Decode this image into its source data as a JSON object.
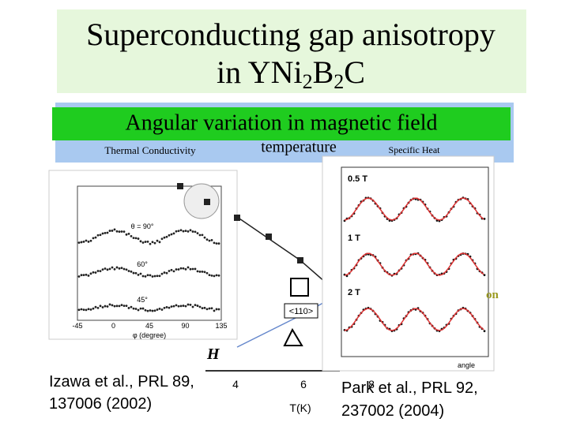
{
  "header": {
    "title_line1": "Superconducting gap anisotropy",
    "title_line2": [
      "in YNi",
      "2",
      "B",
      "2",
      "C"
    ]
  },
  "banner": "Angular variation in magnetic field",
  "labels": {
    "thermal": "Thermal Conductivity",
    "temperature": "temperature",
    "specific": "Specific Heat",
    "fragment": "on"
  },
  "left_figure": {
    "x_ticks": [
      "-45",
      "0",
      "45",
      "90",
      "135"
    ],
    "x_label": "φ (degree)",
    "curves": [
      "θ = 90°",
      "60°",
      "45°"
    ]
  },
  "middle_figure": {
    "x_ticks": [
      "4",
      "6",
      "8"
    ],
    "x_label": "T(K)",
    "inset": "<110>",
    "y_label": "H"
  },
  "right_figure": {
    "fields": [
      "0.5 T",
      "1 T",
      "2 T"
    ],
    "x_label": "angle"
  },
  "citations": [
    [
      "Izawa et al., PRL 89,",
      "137006 (2002)"
    ],
    [
      "Park et al., PRL 92,",
      "237002 (2004)"
    ]
  ]
}
